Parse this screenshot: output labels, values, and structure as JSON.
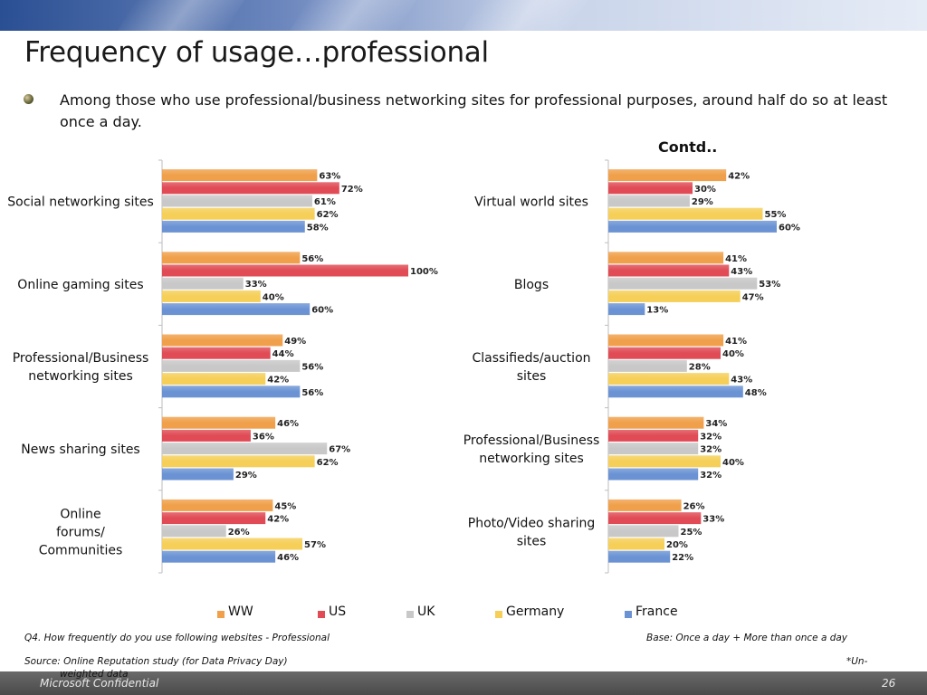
{
  "page": {
    "title": "Frequency of usage…professional",
    "bullet": "Among those who use professional/business networking sites for professional purposes, around half do so  at least once a day.",
    "contd_label": "Contd..",
    "question_note": "Q4. How frequently do you use following websites - Professional",
    "base_note": "Base: Once a day + More than once a day",
    "source_note": "Source: Online Reputation study (for Data Privacy Day)",
    "unweighted_note_a": "*Un-",
    "unweighted_note_b": "weighted data",
    "footer_left": "Microsoft Confidential",
    "footer_page": "26"
  },
  "legend": [
    "WW",
    "US",
    "UK",
    "Germany",
    "France"
  ],
  "colors": {
    "WW": "#f0a04a",
    "US": "#e04b55",
    "UK": "#c8c8c8",
    "Germany": "#f5cf58",
    "France": "#6b93d4"
  },
  "chart_data": [
    {
      "type": "bar",
      "orientation": "horizontal",
      "categories": [
        "Social networking sites",
        "Online gaming sites",
        "Professional/Business networking sites",
        "News sharing sites",
        "Online forums/ Communities"
      ],
      "series": [
        {
          "name": "WW",
          "values": [
            63,
            56,
            49,
            46,
            45
          ]
        },
        {
          "name": "US",
          "values": [
            72,
            100,
            44,
            36,
            42
          ]
        },
        {
          "name": "UK",
          "values": [
            61,
            33,
            56,
            67,
            26
          ]
        },
        {
          "name": "Germany",
          "values": [
            62,
            40,
            42,
            62,
            57
          ]
        },
        {
          "name": "France",
          "values": [
            58,
            60,
            56,
            29,
            46
          ]
        }
      ],
      "value_suffix": "%",
      "xlim": [
        0,
        100
      ],
      "legend": "bottom"
    },
    {
      "type": "bar",
      "orientation": "horizontal",
      "categories": [
        "Virtual world sites",
        "Blogs",
        "Classifieds/auction sites",
        "Professional/Business networking sites",
        "Photo/Video sharing sites"
      ],
      "series": [
        {
          "name": "WW",
          "values": [
            42,
            41,
            41,
            34,
            26
          ]
        },
        {
          "name": "US",
          "values": [
            30,
            43,
            40,
            32,
            33
          ]
        },
        {
          "name": "UK",
          "values": [
            29,
            53,
            28,
            32,
            25
          ]
        },
        {
          "name": "Germany",
          "values": [
            55,
            47,
            43,
            40,
            20
          ]
        },
        {
          "name": "France",
          "values": [
            60,
            13,
            48,
            32,
            22
          ]
        }
      ],
      "value_suffix": "%",
      "xlim": [
        0,
        100
      ],
      "legend": "bottom"
    }
  ]
}
